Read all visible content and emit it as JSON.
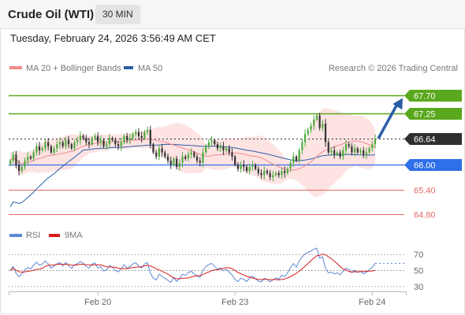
{
  "header": {
    "instrument": "Crude Oil (WTI)",
    "timeframe": "30 MIN"
  },
  "timestamp": "Tuesday, February 24, 2026 3:56:49 AM CET",
  "copyright": "Research © 2026 Trading Central",
  "colors": {
    "resistance_green": "#5aa81e",
    "pivot_blue": "#2f6fe8",
    "support_red": "#e36b6b",
    "price_dark": "#2f2f2f",
    "candle_up": "#4caa3b",
    "candle_down": "#333333",
    "ma20": "#f08b8b",
    "ma50": "#2b5ea8",
    "bollinger_fill": "#fdd9d9",
    "rsi": "#5e87d6",
    "rsi_ma": "#d81b1b",
    "arrow": "#2a5ea8"
  },
  "chart_data": [
    {
      "type": "candlestick",
      "legend": [
        {
          "name": "MA 20 + Bollinger Bands",
          "color": "#f08b8b"
        },
        {
          "name": "MA 50",
          "color": "#2b5ea8"
        }
      ],
      "ylim": [
        64.55,
        68.15
      ],
      "levels": [
        {
          "label": "67.70",
          "value": 67.7,
          "kind": "resistance"
        },
        {
          "label": "67.25",
          "value": 67.25,
          "kind": "resistance"
        },
        {
          "label": "66.64",
          "value": 66.64,
          "kind": "last_price"
        },
        {
          "label": "66.00",
          "value": 66.0,
          "kind": "pivot"
        },
        {
          "label": "65.40",
          "value": 65.4,
          "kind": "support"
        },
        {
          "label": "64.80",
          "value": 64.8,
          "kind": "support"
        }
      ],
      "x_ticks": [
        {
          "label": "Feb 20",
          "index": 30
        },
        {
          "label": "Feb 23",
          "index": 77
        },
        {
          "label": "Feb 24",
          "index": 124
        }
      ],
      "close": [
        66.1,
        66.25,
        66.0,
        65.85,
        65.95,
        66.1,
        66.2,
        66.15,
        66.3,
        66.45,
        66.35,
        66.4,
        66.55,
        66.45,
        66.3,
        66.4,
        66.5,
        66.55,
        66.45,
        66.6,
        66.5,
        66.4,
        66.55,
        66.6,
        66.7,
        66.65,
        66.55,
        66.5,
        66.65,
        66.7,
        66.55,
        66.6,
        66.45,
        66.5,
        66.65,
        66.6,
        66.5,
        66.45,
        66.55,
        66.7,
        66.6,
        66.65,
        66.75,
        66.8,
        66.7,
        66.65,
        66.8,
        66.85,
        66.5,
        66.3,
        66.2,
        66.4,
        66.3,
        66.2,
        66.1,
        66.0,
        66.15,
        65.95,
        66.05,
        66.2,
        66.15,
        66.25,
        66.3,
        66.2,
        66.1,
        66.05,
        66.3,
        66.45,
        66.55,
        66.6,
        66.5,
        66.4,
        66.45,
        66.35,
        66.4,
        66.3,
        66.2,
        66.0,
        65.9,
        66.0,
        65.95,
        65.85,
        65.95,
        66.0,
        65.9,
        65.8,
        65.75,
        65.85,
        65.8,
        65.7,
        65.75,
        65.8,
        65.75,
        65.85,
        65.8,
        65.9,
        66.05,
        66.2,
        66.1,
        66.35,
        66.55,
        66.75,
        66.85,
        66.95,
        67.1,
        67.2,
        66.9,
        67.0,
        66.55,
        66.3,
        66.35,
        66.25,
        66.3,
        66.2,
        66.35,
        66.5,
        66.45,
        66.3,
        66.4,
        66.3,
        66.35,
        66.25,
        66.3,
        66.4,
        66.5,
        66.64
      ],
      "projection": {
        "from_index": 125,
        "from_value": 66.64,
        "to_value": 67.7
      }
    },
    {
      "type": "line",
      "legend": [
        {
          "name": "RSI",
          "color": "#5e87d6"
        },
        {
          "name": "9MA",
          "color": "#d81b1b"
        }
      ],
      "ylim": [
        22,
        85
      ],
      "y_ticks": [
        70,
        50,
        30
      ],
      "guides": [
        70,
        50,
        30
      ],
      "rsi_last": 59
    }
  ]
}
